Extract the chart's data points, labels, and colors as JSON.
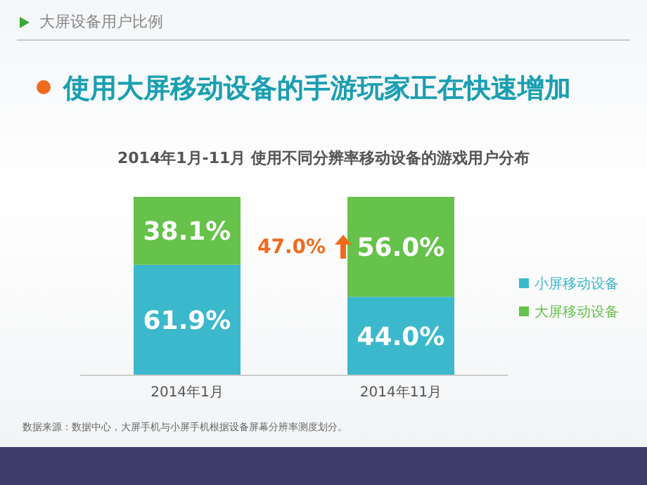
{
  "chart_data": {
    "type": "bar",
    "stacked": true,
    "title": "使用大屏移动设备的手游玩家正在快速增加",
    "subtitle": "2014年1月-11月 使用不同分辨率移动设备的游戏用户分布",
    "categories": [
      "2014年1月",
      "2014年11月"
    ],
    "series": [
      {
        "name": "小屏移动设备",
        "color": "#3bb8cc",
        "values": [
          61.9,
          44.0
        ],
        "value_labels": [
          "61.9%",
          "44.0%"
        ]
      },
      {
        "name": "大屏移动设备",
        "color": "#66c24a",
        "values": [
          38.1,
          56.0
        ],
        "value_labels": [
          "38.1%",
          "56.0%"
        ]
      }
    ],
    "legend": "right",
    "grid": false,
    "annotations": [
      "大屏设备用户比例",
      "47.0%",
      "数据来源：数据中心，大屏手机与小屏手机根据设备屏幕分辨率测度划分。"
    ]
  }
}
